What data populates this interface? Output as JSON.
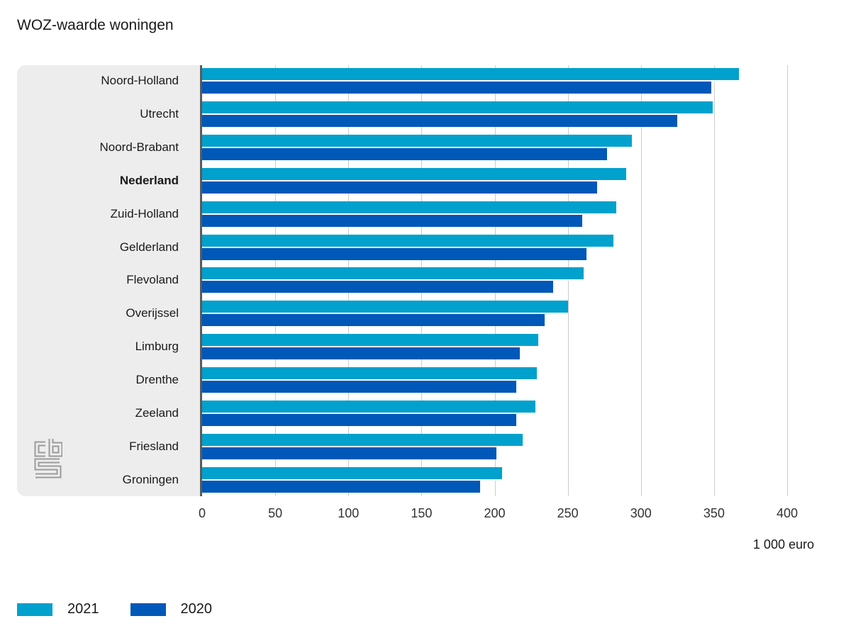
{
  "title": "WOZ-waarde woningen",
  "unit_label": "1 000 euro",
  "colors": {
    "series_2021": "#00a1cd",
    "series_2020": "#0058b8",
    "label_panel_bg": "#ededed",
    "axis_line": "#595a5c",
    "gridline": "#cccccc",
    "logo_gray": "#9b9b9b"
  },
  "legend": [
    {
      "label": "2021",
      "color": "#00a1cd"
    },
    {
      "label": "2020",
      "color": "#0058b8"
    }
  ],
  "chart_data": {
    "type": "bar",
    "orientation": "horizontal",
    "title": "WOZ-waarde woningen",
    "xlabel": "1 000 euro",
    "xlim": [
      0,
      400
    ],
    "ticks": [
      0,
      50,
      100,
      150,
      200,
      250,
      300,
      350,
      400
    ],
    "grid": true,
    "legend_position": "bottom",
    "categories": [
      "Noord-Holland",
      "Utrecht",
      "Noord-Brabant",
      "Nederland",
      "Zuid-Holland",
      "Gelderland",
      "Flevoland",
      "Overijssel",
      "Limburg",
      "Drenthe",
      "Zeeland",
      "Friesland",
      "Groningen"
    ],
    "emphasized_category": "Nederland",
    "series": [
      {
        "name": "2021",
        "color": "#00a1cd",
        "values": [
          367,
          349,
          294,
          290,
          283,
          281,
          261,
          250,
          230,
          229,
          228,
          219,
          205
        ]
      },
      {
        "name": "2020",
        "color": "#0058b8",
        "values": [
          348,
          325,
          277,
          270,
          260,
          263,
          240,
          234,
          217,
          215,
          215,
          201,
          190
        ]
      }
    ],
    "source_logo": "cbs-logo"
  }
}
